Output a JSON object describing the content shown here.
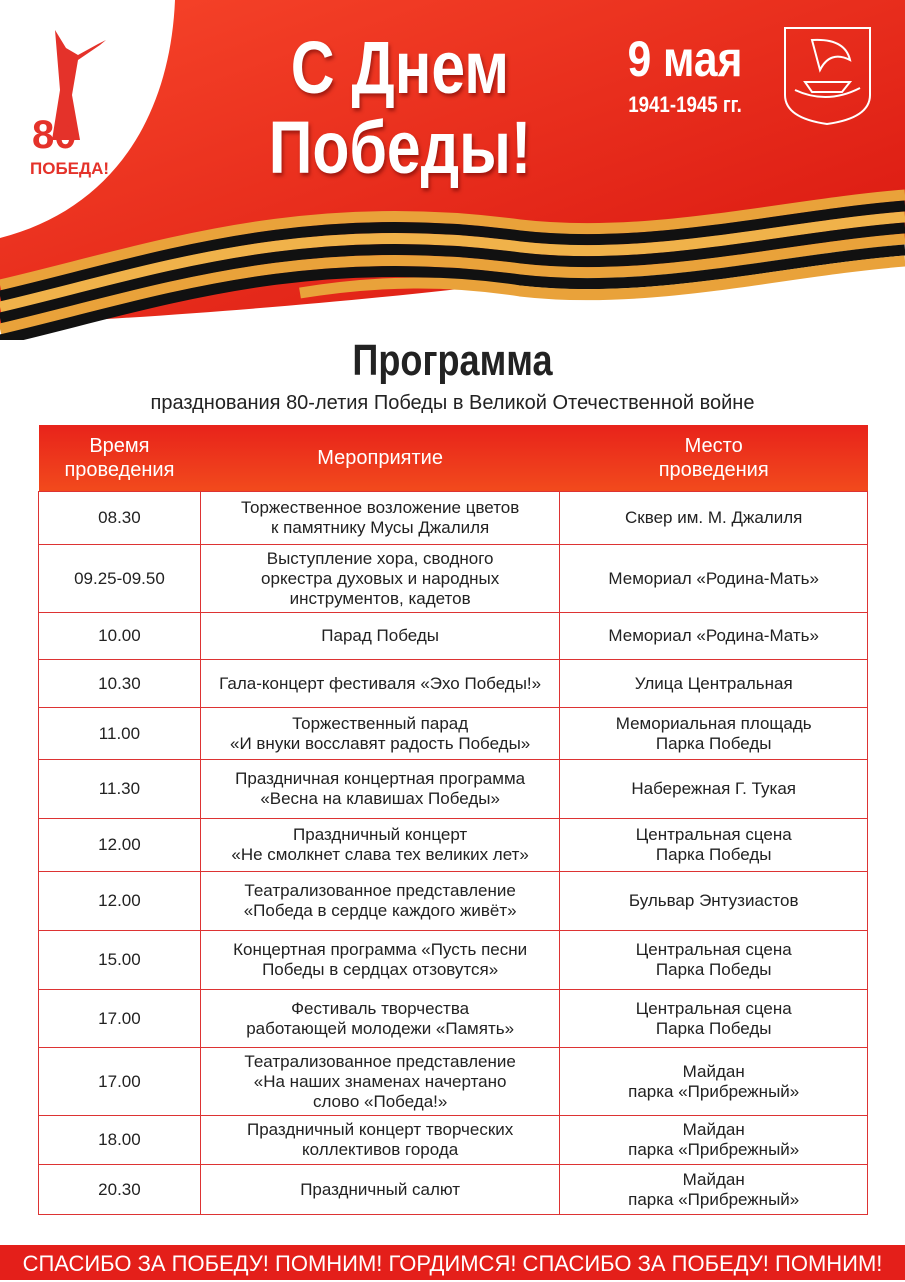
{
  "header": {
    "logo_number": "80",
    "logo_text": "ПОБЕДА!",
    "title_line1": "С Днем",
    "title_line2": "Победы!",
    "date": "9 мая",
    "years": "1941-1945 гг."
  },
  "program": {
    "title": "Программа",
    "subtitle": "празднования 80-летия Победы в Великой Отечественной войне"
  },
  "table": {
    "columns": [
      "Время\nпроведения",
      "Мероприятие",
      "Место\nпроведения"
    ],
    "rows": [
      [
        "08.30",
        "Торжественное возложение цветов\nк памятнику Мусы Джалиля",
        "Сквер им. М. Джалиля"
      ],
      [
        "09.25-09.50",
        "Выступление хора, сводного\nоркестра духовых и народных\nинструментов, кадетов",
        "Мемориал «Родина-Мать»"
      ],
      [
        "10.00",
        "Парад Победы",
        "Мемориал «Родина-Мать»"
      ],
      [
        "10.30",
        "Гала-концерт фестиваля «Эхо Победы!»",
        "Улица Центральная"
      ],
      [
        "11.00",
        "Торжественный парад\n«И внуки восславят радость Победы»",
        "Мемориальная площадь\nПарка Победы"
      ],
      [
        "11.30",
        "Праздничная концертная программа\n«Весна на клавишах Победы»",
        "Набережная Г. Тукая"
      ],
      [
        "12.00",
        "Праздничный концерт\n«Не смолкнет слава тех великих лет»",
        "Центральная сцена\nПарка Победы"
      ],
      [
        "12.00",
        "Театрализованное представление\n«Победа в сердце каждого живёт»",
        "Бульвар Энтузиастов"
      ],
      [
        "15.00",
        "Концертная программа «Пусть песни\nПобеды в сердцах отзовутся»",
        "Центральная сцена\nПарка Победы"
      ],
      [
        "17.00",
        "Фестиваль творчества\nработающей молодежи «Память»",
        "Центральная сцена\nПарка Победы"
      ],
      [
        "17.00",
        "Театрализованное представление\n«На наших знаменах начертано\nслово «Победа!»",
        "Майдан\nпарка «Прибрежный»"
      ],
      [
        "18.00",
        "Праздничный концерт творческих\nколлективов города",
        "Майдан\nпарка «Прибрежный»"
      ],
      [
        "20.30",
        "Праздничный салют",
        "Майдан\nпарка «Прибрежный»"
      ]
    ]
  },
  "footer": {
    "text": "СПАСИБО ЗА ПОБЕДУ! ПОМНИМ! ГОРДИМСЯ! СПАСИБО ЗА ПОБЕДУ! ПОМНИМ!"
  }
}
